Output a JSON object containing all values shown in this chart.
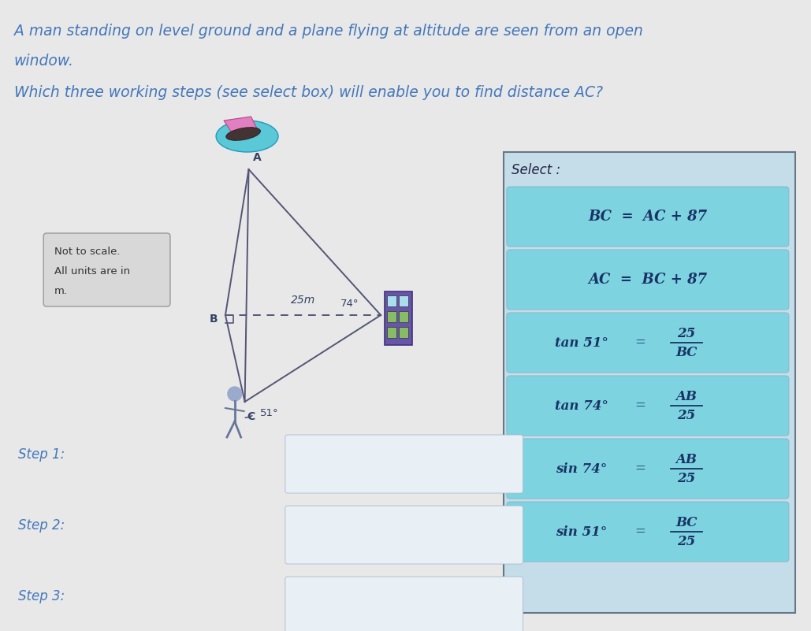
{
  "bg_color": "#e8e8e8",
  "title_line1": "A man standing on level ground and a plane flying at altitude are seen from an open",
  "title_line2": "window.",
  "subtitle": "Which three working steps (see select box) will enable you to find distance AC?",
  "title_color": "#4477bb",
  "select_label": "Select :",
  "select_items": [
    {
      "left": "BC",
      "eq": "=",
      "right": "AC + 87",
      "fraction": false
    },
    {
      "left": "AC",
      "eq": "=",
      "right": "BC + 87",
      "fraction": false
    },
    {
      "left": "tan 51°",
      "eq": "=",
      "num": "25",
      "den": "BC",
      "fraction": true
    },
    {
      "left": "tan 74°",
      "eq": "=",
      "num": "AB",
      "den": "25",
      "fraction": true
    },
    {
      "left": "sin 74°",
      "eq": "=",
      "num": "AB",
      "den": "25",
      "fraction": true
    },
    {
      "left": "sin 51°",
      "eq": "=",
      "num": "BC",
      "den": "25",
      "fraction": true
    }
  ],
  "note_line1": "Not to scale.",
  "note_line2": "All units are in",
  "note_line3": "m.",
  "step_labels": [
    "Step 1:",
    "Step 2:",
    "Step 3:"
  ],
  "btn_color": "#7dd4e0",
  "btn_text_color": "#1a3366",
  "outer_box_color": "#b8ccd8",
  "line_color": "#555577",
  "label_color": "#334466"
}
